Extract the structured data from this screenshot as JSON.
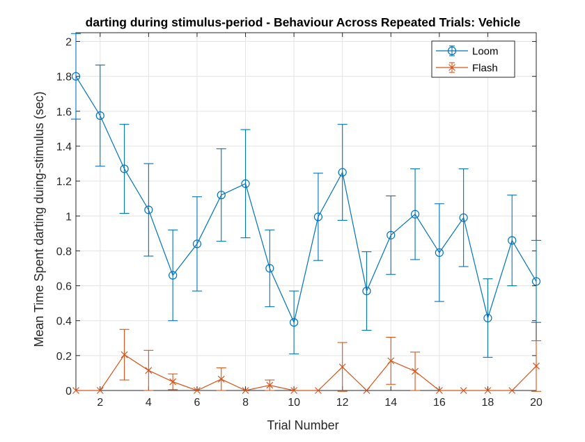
{
  "chart_data": {
    "type": "line",
    "title": "darting during stimulus-period - Behaviour Across Repeated Trials: Vehicle",
    "xlabel": "Trial Number",
    "ylabel": "Mean Time Spent darting duing-stimulus (sec)",
    "xlim": [
      1,
      20
    ],
    "ylim": [
      0,
      2.05
    ],
    "xticks": [
      2,
      4,
      6,
      8,
      10,
      12,
      14,
      16,
      18,
      20
    ],
    "yticks": [
      0,
      0.2,
      0.4,
      0.6,
      0.8,
      1,
      1.2,
      1.4,
      1.6,
      1.8,
      2
    ],
    "xtick_labels": [
      "2",
      "4",
      "6",
      "8",
      "10",
      "12",
      "14",
      "16",
      "18",
      "20"
    ],
    "ytick_labels": [
      "0",
      "0.2",
      "0.4",
      "0.6",
      "0.8",
      "1",
      "1.2",
      "1.4",
      "1.6",
      "1.8",
      "2"
    ],
    "grid": true,
    "legend": "top-right",
    "x": [
      1,
      2,
      3,
      4,
      5,
      6,
      7,
      8,
      9,
      10,
      11,
      12,
      13,
      14,
      15,
      16,
      17,
      18,
      19,
      20
    ],
    "series": [
      {
        "name": "Loom",
        "color": "#0072BD",
        "marker": "circle",
        "values": [
          1.8,
          1.575,
          1.27,
          1.035,
          0.66,
          0.84,
          1.12,
          1.185,
          0.7,
          0.39,
          0.995,
          1.25,
          0.57,
          0.89,
          1.01,
          0.79,
          0.99,
          0.415,
          0.86,
          0.625
        ],
        "errors": [
          0.245,
          0.29,
          0.255,
          0.265,
          0.26,
          0.27,
          0.265,
          0.31,
          0.22,
          0.18,
          0.25,
          0.275,
          0.225,
          0.225,
          0.26,
          0.28,
          0.28,
          0.225,
          0.26,
          0.235
        ]
      },
      {
        "name": "Flash",
        "color": "#D95319",
        "marker": "x",
        "values": [
          0,
          0,
          0.205,
          0.115,
          0.05,
          0,
          0.065,
          0,
          0.03,
          0,
          0,
          0.135,
          0,
          0.17,
          0.11,
          0,
          0,
          0,
          0,
          0.14
        ],
        "errors": [
          0,
          0,
          0.145,
          0.115,
          0.045,
          0,
          0.065,
          0,
          0.03,
          0,
          0,
          0.14,
          0,
          0.135,
          0.11,
          0,
          0,
          0,
          0,
          0.145
        ]
      }
    ]
  }
}
